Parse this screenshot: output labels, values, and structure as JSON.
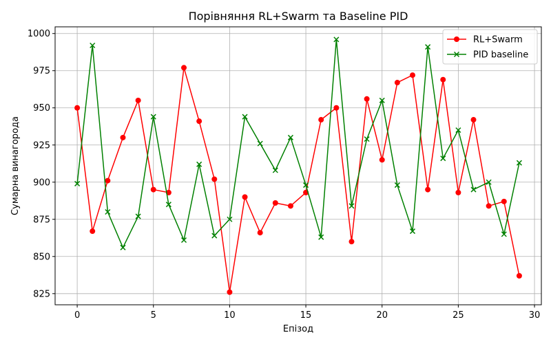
{
  "chart_data": {
    "type": "line",
    "title": "Порівняння RL+Swarm та Baseline PID",
    "xlabel": "Епізод",
    "ylabel": "Сумарна винагорода",
    "xlim": [
      -1.45,
      30.45
    ],
    "ylim": [
      817.5,
      1004.5
    ],
    "xticks": [
      0,
      5,
      10,
      15,
      20,
      25,
      30
    ],
    "yticks": [
      825,
      850,
      875,
      900,
      925,
      950,
      975,
      1000
    ],
    "grid": true,
    "legend_position": "top-right",
    "x": [
      0,
      1,
      2,
      3,
      4,
      5,
      6,
      7,
      8,
      9,
      10,
      11,
      12,
      13,
      14,
      15,
      16,
      17,
      18,
      19,
      20,
      21,
      22,
      23,
      24,
      25,
      26,
      27,
      28,
      29
    ],
    "series": [
      {
        "name": "RL+Swarm",
        "color": "#ff0000",
        "marker": "circle",
        "values": [
          950,
          867,
          901,
          930,
          955,
          895,
          893,
          977,
          941,
          902,
          826,
          890,
          866,
          886,
          884,
          893,
          942,
          950,
          860,
          956,
          915,
          967,
          972,
          895,
          969,
          893,
          942,
          884,
          887,
          837
        ]
      },
      {
        "name": "PID baseline",
        "color": "#008000",
        "marker": "x",
        "values": [
          899,
          992,
          880,
          856,
          877,
          944,
          885,
          861,
          912,
          864,
          875,
          944,
          926,
          908,
          930,
          898,
          863,
          996,
          884,
          929,
          955,
          898,
          867,
          991,
          916,
          935,
          895,
          900,
          865,
          913
        ]
      }
    ]
  }
}
